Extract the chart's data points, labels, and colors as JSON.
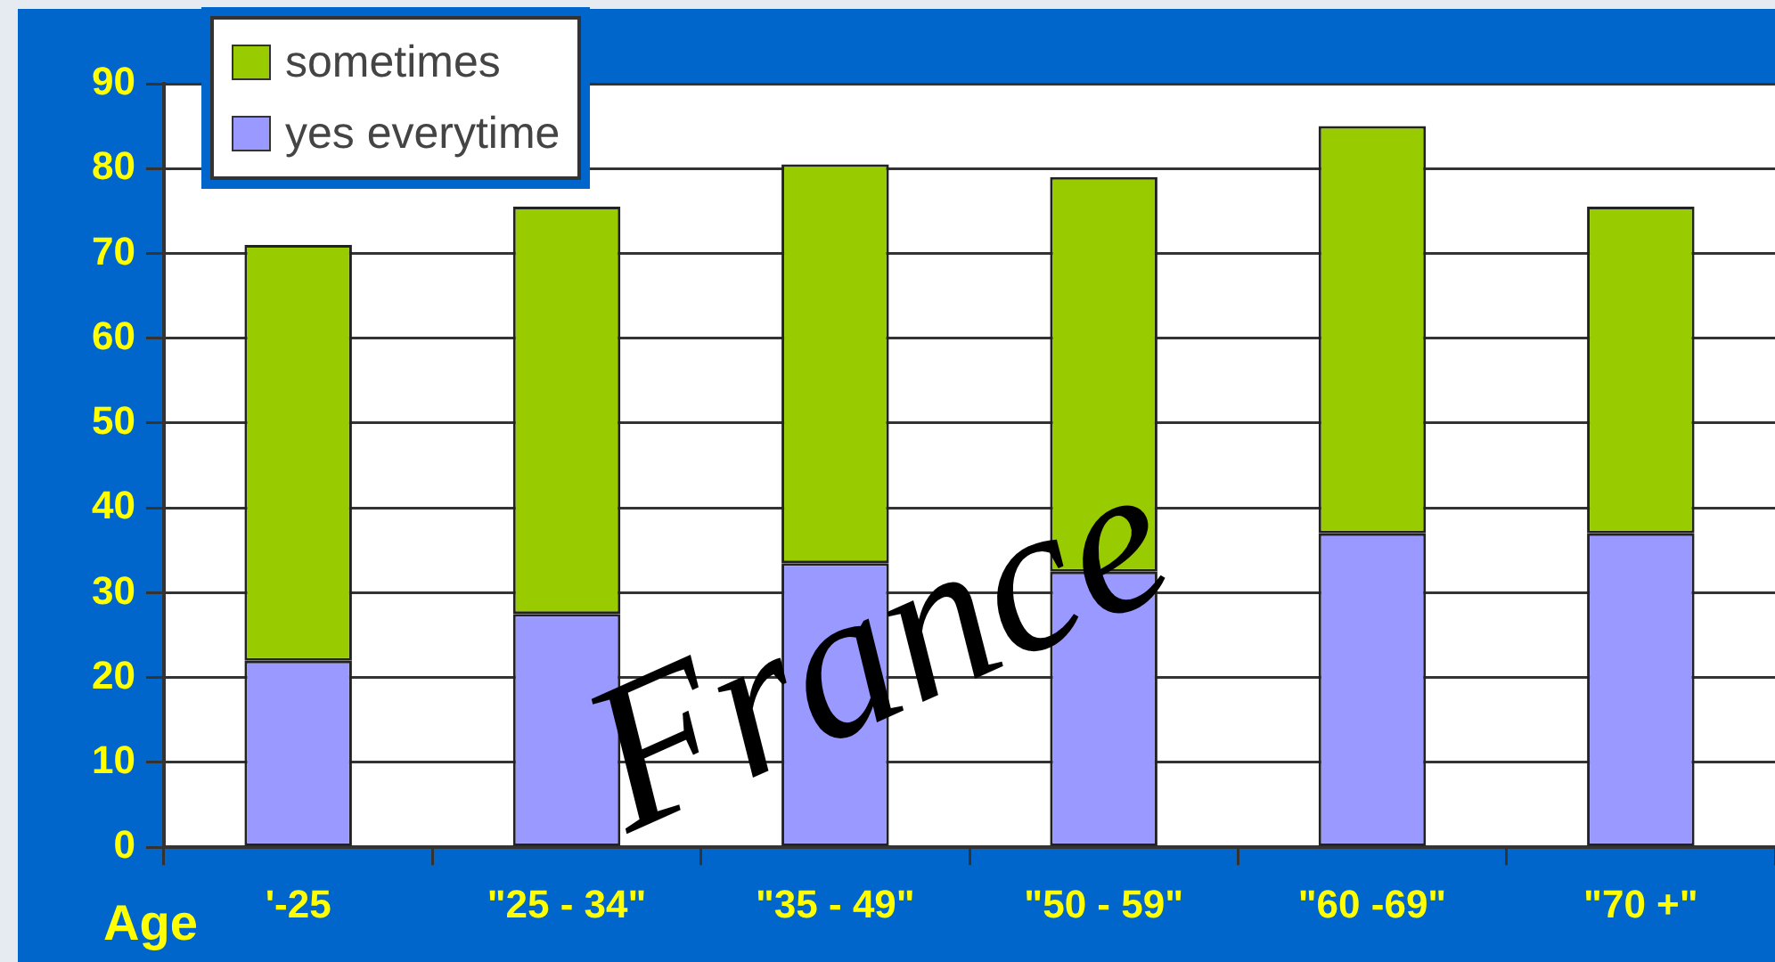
{
  "chart_data": {
    "type": "bar",
    "stacked": true,
    "xlabel": "Age",
    "categories": [
      "'-25",
      "\"25 - 34\"",
      "\"35 - 49\"",
      "\"50 - 59\"",
      "\"60 -69\"",
      "\"70 +\""
    ],
    "series": [
      {
        "name": "yes everytime",
        "color": "#9999ff",
        "values": [
          22,
          27.5,
          33.5,
          32.5,
          37,
          37
        ]
      },
      {
        "name": "sometimes",
        "color": "#99cc00",
        "values": [
          49,
          48,
          47,
          46.5,
          48,
          38.5
        ]
      }
    ],
    "ylim": [
      0,
      90
    ],
    "yticks": [
      0,
      10,
      20,
      30,
      40,
      50,
      60,
      70,
      80,
      90
    ],
    "grid": "y",
    "legend": "top left",
    "annotations": [
      "France"
    ]
  }
}
